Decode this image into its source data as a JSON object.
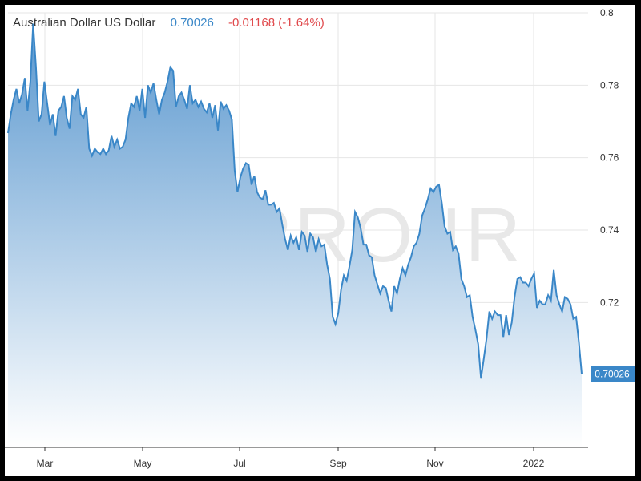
{
  "header": {
    "name": "Australian Dollar US Dollar",
    "last": "0.70026",
    "change": "-0.01168 (-1.64%)"
  },
  "watermark": "CMPRO.IR",
  "colors": {
    "line": "#3a87c8",
    "fill_top": "#5b98cf",
    "fill_bottom": "#ffffff",
    "change_negative": "#e0484b",
    "grid": "#e6e6e6"
  },
  "chart_data": {
    "type": "area",
    "title": "Australian Dollar US Dollar",
    "ylim": [
      0.68,
      0.8
    ],
    "y_ticks": [
      "0.8",
      "0.78",
      "0.76",
      "0.74",
      "0.72"
    ],
    "x_ticks": [
      "Mar",
      "May",
      "Jul",
      "Sep",
      "Nov",
      "2022"
    ],
    "last_value_label": "0.70026",
    "grid": true,
    "series": [
      {
        "values": [
          0.7668,
          0.772,
          0.776,
          0.779,
          0.775,
          0.7775,
          0.782,
          0.773,
          0.781,
          0.797,
          0.785,
          0.77,
          0.772,
          0.781,
          0.775,
          0.769,
          0.772,
          0.766,
          0.773,
          0.774,
          0.777,
          0.771,
          0.768,
          0.777,
          0.776,
          0.779,
          0.772,
          0.771,
          0.774,
          0.7625,
          0.7605,
          0.7625,
          0.7615,
          0.761,
          0.7625,
          0.761,
          0.762,
          0.766,
          0.763,
          0.765,
          0.7625,
          0.763,
          0.765,
          0.771,
          0.775,
          0.774,
          0.777,
          0.773,
          0.779,
          0.771,
          0.78,
          0.778,
          0.7805,
          0.776,
          0.772,
          0.776,
          0.778,
          0.781,
          0.785,
          0.784,
          0.774,
          0.777,
          0.778,
          0.776,
          0.7735,
          0.78,
          0.775,
          0.776,
          0.774,
          0.7755,
          0.7735,
          0.7725,
          0.775,
          0.771,
          0.7745,
          0.7675,
          0.7755,
          0.7735,
          0.7745,
          0.773,
          0.7705,
          0.7565,
          0.7505,
          0.7545,
          0.757,
          0.7585,
          0.758,
          0.7525,
          0.755,
          0.7505,
          0.749,
          0.7485,
          0.751,
          0.747,
          0.747,
          0.7475,
          0.745,
          0.746,
          0.7415,
          0.7375,
          0.7345,
          0.7385,
          0.7365,
          0.738,
          0.7345,
          0.7395,
          0.7385,
          0.734,
          0.739,
          0.738,
          0.734,
          0.7375,
          0.7355,
          0.736,
          0.7305,
          0.7265,
          0.716,
          0.714,
          0.717,
          0.7235,
          0.7275,
          0.726,
          0.73,
          0.7345,
          0.745,
          0.7435,
          0.7405,
          0.736,
          0.736,
          0.733,
          0.7325,
          0.7275,
          0.725,
          0.7225,
          0.7245,
          0.724,
          0.7205,
          0.7175,
          0.7245,
          0.7225,
          0.7265,
          0.7295,
          0.7275,
          0.7305,
          0.7325,
          0.7355,
          0.7365,
          0.739,
          0.744,
          0.746,
          0.7485,
          0.7515,
          0.7505,
          0.752,
          0.7525,
          0.7475,
          0.741,
          0.739,
          0.7395,
          0.7345,
          0.7355,
          0.7335,
          0.7265,
          0.7245,
          0.7215,
          0.722,
          0.716,
          0.7125,
          0.7085,
          0.699,
          0.7045,
          0.71,
          0.7175,
          0.7155,
          0.7175,
          0.7165,
          0.7165,
          0.7105,
          0.7165,
          0.711,
          0.7145,
          0.7215,
          0.7265,
          0.727,
          0.7255,
          0.7255,
          0.7245,
          0.7265,
          0.728,
          0.7185,
          0.7205,
          0.7195,
          0.7195,
          0.722,
          0.7205,
          0.729,
          0.722,
          0.7195,
          0.7175,
          0.7215,
          0.721,
          0.7195,
          0.7155,
          0.716,
          0.709,
          0.7003
        ]
      }
    ]
  }
}
